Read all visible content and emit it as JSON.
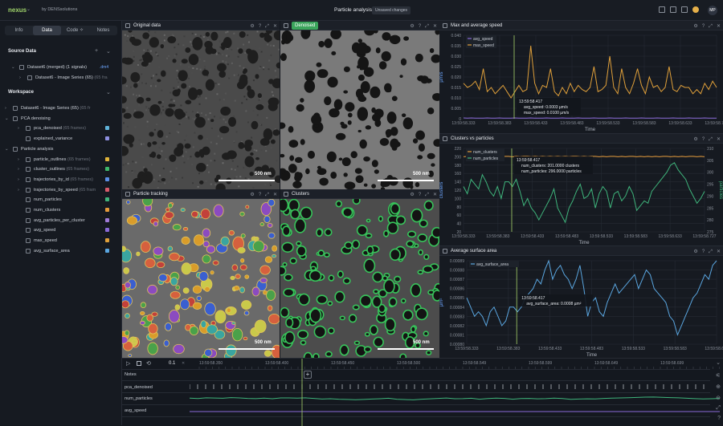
{
  "app": {
    "logo": "nexus",
    "byline": "by DENSsolutions",
    "title": "Particle analysis",
    "status": "Unsaved changes",
    "avatar": "MP"
  },
  "sidebar": {
    "tabs": [
      {
        "label": "Info"
      },
      {
        "label": "Data"
      },
      {
        "label": "Code ✧"
      },
      {
        "label": "Notes"
      }
    ],
    "source_data": "Source Data",
    "source_items": [
      {
        "label": "Dataset6 (merged) (1 signals)",
        "ext": ".dm4"
      },
      {
        "label": "Dataset6 - Image Series (65)",
        "sub": "(65 fra"
      }
    ],
    "workspace": "Workspace",
    "ws_items": [
      {
        "label": "Dataset6 - Image Series (65)",
        "sub": "(65 fr"
      },
      {
        "label": "PCA denoising"
      },
      {
        "label": "pca_denoised",
        "sub": "(65 frames)"
      },
      {
        "label": "explained_variance"
      },
      {
        "label": "Particle analysis"
      },
      {
        "label": "particle_outlines",
        "sub": "(65 frames)"
      },
      {
        "label": "cluster_outlines",
        "sub": "(65 frames)"
      },
      {
        "label": "trajectories_by_id",
        "sub": "(65 frames)"
      },
      {
        "label": "trajectories_by_speed",
        "sub": "(65 fram"
      },
      {
        "label": "num_particles"
      },
      {
        "label": "num_clusters"
      },
      {
        "label": "avg_particles_per_cluster"
      },
      {
        "label": "avg_speed"
      },
      {
        "label": "max_speed"
      },
      {
        "label": "avg_surface_area"
      }
    ],
    "colors": {
      "pca_denoised": "#5fb3d9",
      "explained_variance": "#8e8fe0",
      "particle_outlines": "#e0b43a",
      "cluster_outlines": "#3db86a",
      "trajectories_by_id": "#5a8ee6",
      "trajectories_by_speed": "#d85a6a",
      "num_particles": "#3fb57c",
      "num_clusters": "#e49a3a",
      "avg_particles_per_cluster": "#a07ad8",
      "avg_speed": "#8a6ad8",
      "max_speed": "#e0a03a",
      "avg_surface_area": "#5aa6e0"
    }
  },
  "panels": {
    "original": "Original data",
    "denoised": "Denoised",
    "tracking": "Particle tracking",
    "clusters": "Clusters",
    "scalebar": "500 nm"
  },
  "chart_data": [
    {
      "type": "line",
      "title": "Max and average speed",
      "xlabel": "Time",
      "ylabel": "µm/s",
      "ticks_x": [
        "13:59:58.333",
        "13:59:58.383",
        "13:59:58.433",
        "13:59:58.483",
        "13:59:58.533",
        "13:59:58.583",
        "13:59:58.633",
        "13:59:58.727"
      ],
      "ticks_y": [
        "0.040",
        "0.035",
        "0.030",
        "0.025",
        "0.020",
        "0.015",
        "0.010",
        "0.005",
        "0"
      ],
      "ylim": [
        0,
        0.04
      ],
      "series": [
        {
          "name": "avg_speed",
          "color": "#8a6ad8",
          "values": [
            0.0004,
            0.0003,
            0.0004,
            0.0003,
            0.0003,
            0.0003,
            0.0004,
            0.0003,
            0.0003,
            0.0004,
            0.0003,
            0.0003,
            0.0003,
            0.0004,
            0.0003,
            0.0003,
            0.0003,
            0.0004,
            0.0003,
            0.0003,
            0.0003,
            0.0004,
            0.0003,
            0.0003,
            0.0003,
            0.0004,
            0.0003,
            0.0003,
            0.0003,
            0.0004,
            0.0003,
            0.0003,
            0.0003,
            0.0004,
            0.0003,
            0.0003,
            0.0003,
            0.0004,
            0.0003,
            0.0003,
            0.0003,
            0.0004,
            0.0003,
            0.0003,
            0.0003,
            0.0004,
            0.0003,
            0.0003,
            0.0003,
            0.0004,
            0.0003,
            0.0003,
            0.0003,
            0.0004,
            0.0003,
            0.0003,
            0.0003,
            0.0004,
            0.0003,
            0.0003,
            0.0003,
            0.0004,
            0.0003,
            0.0003,
            0.0003
          ]
        },
        {
          "name": "max_speed",
          "color": "#e0a03a",
          "values": [
            0.017,
            0.015,
            0.016,
            0.018,
            0.014,
            0.024,
            0.013,
            0.015,
            0.012,
            0.014,
            0.016,
            0.013,
            0.01,
            0.013,
            0.016,
            0.013,
            0.014,
            0.035,
            0.017,
            0.012,
            0.016,
            0.015,
            0.024,
            0.013,
            0.011,
            0.015,
            0.012,
            0.017,
            0.013,
            0.016,
            0.014,
            0.013,
            0.015,
            0.025,
            0.013,
            0.014,
            0.016,
            0.03,
            0.015,
            0.012,
            0.024,
            0.015,
            0.012,
            0.017,
            0.024,
            0.016,
            0.012,
            0.02,
            0.015,
            0.016,
            0.013,
            0.015,
            0.025,
            0.014,
            0.013,
            0.016,
            0.015,
            0.015,
            0.012,
            0.014,
            0.012,
            0.017,
            0.014,
            0.018,
            0.015
          ]
        }
      ],
      "tooltip": {
        "time": "13:59:58.417",
        "lines": [
          "avg_speed: 0.0003 µm/s",
          "max_speed: 0.0100 µm/s"
        ]
      }
    },
    {
      "type": "line",
      "title": "Clusters vs particles",
      "xlabel": "Time",
      "ylabel": "clusters",
      "ylabel2": "particles",
      "ticks_x": [
        "13:59:58.333",
        "13:59:58.383",
        "13:59:58.433",
        "13:59:58.483",
        "13:59:58.533",
        "13:59:58.583",
        "13:59:58.633",
        "13:59:58.727"
      ],
      "ticks_y": [
        "220",
        "200",
        "180",
        "160",
        "140",
        "120",
        "100",
        "80",
        "60",
        "40",
        "20"
      ],
      "ticks_y2": [
        "310",
        "305",
        "300",
        "295",
        "290",
        "285",
        "280",
        "275"
      ],
      "ylim": [
        20,
        220
      ],
      "ylim2": [
        275,
        310
      ],
      "series": [
        {
          "name": "num_clusters",
          "color": "#e49a3a",
          "axis": "left",
          "values": [
            200,
            201,
            200,
            201,
            200,
            200,
            201,
            200,
            201,
            201,
            200,
            201,
            201,
            200,
            201,
            200,
            201,
            201,
            200,
            201,
            200,
            201,
            200,
            201,
            200,
            201,
            200,
            201,
            200,
            201,
            201,
            200,
            201,
            200,
            201,
            201,
            200,
            201,
            200,
            201,
            201,
            200,
            201,
            200,
            201,
            201,
            200,
            201,
            200,
            201,
            200,
            201,
            200,
            201,
            201,
            200,
            201,
            200,
            201,
            200,
            201,
            201,
            200,
            201,
            200
          ]
        },
        {
          "name": "num_particles",
          "color": "#3fb57c",
          "axis": "right",
          "values": [
            294,
            291,
            297,
            295,
            293,
            299,
            296,
            292,
            290,
            294,
            289,
            296,
            296,
            294,
            297,
            292,
            286,
            289,
            285,
            283,
            280,
            283,
            286,
            289,
            293,
            285,
            282,
            279,
            285,
            288,
            292,
            295,
            289,
            290,
            293,
            285,
            291,
            294,
            292,
            285,
            291,
            292,
            288,
            290,
            294,
            291,
            284,
            286,
            288,
            287,
            292,
            294,
            296,
            298,
            300,
            303,
            304,
            301,
            299,
            297,
            293,
            290,
            287,
            289,
            292
          ]
        }
      ],
      "tooltip": {
        "time": "13:59:58.417",
        "lines": [
          "num_clusters: 201.0000 clusters",
          "num_particles: 296.0000 particles"
        ]
      }
    },
    {
      "type": "line",
      "title": "Average surface area",
      "xlabel": "Time",
      "ylabel": "µm²",
      "ticks_x": [
        "13:59:58.333",
        "13:59:58.383",
        "13:59:58.433",
        "13:59:58.483",
        "13:59:58.533",
        "13:59:58.583",
        "13:59:58.633"
      ],
      "ticks_y": [
        "0.00089",
        "0.00088",
        "0.00087",
        "0.00086",
        "0.00085",
        "0.00084",
        "0.00083",
        "0.00082",
        "0.00081",
        "0.00080"
      ],
      "ylim": [
        0.0008,
        0.00089
      ],
      "series": [
        {
          "name": "avg_surface_area",
          "color": "#5aa6e0",
          "values": [
            0.00085,
            0.00084,
            0.00083,
            0.000835,
            0.00083,
            0.00082,
            0.000835,
            0.00084,
            0.00083,
            0.00082,
            0.000825,
            0.00084,
            0.00084,
            0.000835,
            0.00084,
            0.00085,
            0.000855,
            0.00086,
            0.00087,
            0.000865,
            0.00088,
            0.00089,
            0.00087,
            0.00088,
            0.000885,
            0.000875,
            0.00087,
            0.00086,
            0.00087,
            0.000885,
            0.00086,
            0.00083,
            0.000845,
            0.00085,
            0.000835,
            0.00083,
            0.000845,
            0.000855,
            0.000865,
            0.000855,
            0.00086,
            0.000865,
            0.00087,
            0.000875,
            0.00086,
            0.00087,
            0.00088,
            0.000875,
            0.00086,
            0.000855,
            0.00085,
            0.000845,
            0.00083,
            0.000825,
            0.00081,
            0.00082,
            0.00083,
            0.00084,
            0.00085,
            0.000855,
            0.000865,
            0.000875,
            0.00087,
            0.000885,
            0.00089
          ]
        }
      ],
      "tooltip": {
        "time": "13:59:58.417",
        "lines": [
          "avg_surface_area: 0.0008 µm²"
        ]
      }
    }
  ],
  "timeline": {
    "speed": "0.1",
    "ticks": [
      "13:59:58.350",
      "13:59:58.400",
      "13:59:58.450",
      "13:59:58.500",
      "13:59:58.549",
      "13:59:58.599",
      "13:59:58.649",
      "13:59:58.699"
    ],
    "rows": [
      "Notes",
      "pca_denoised",
      "num_particles",
      "avg_speed"
    ]
  }
}
